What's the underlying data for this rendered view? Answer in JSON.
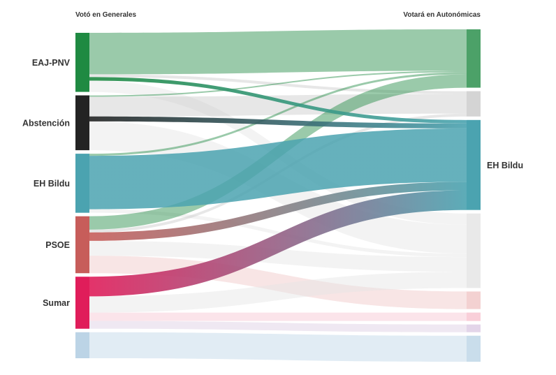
{
  "chart_data": {
    "type": "sankey",
    "left_header": "Votó en Generales",
    "right_header": "Votará en Autonómicas",
    "colors": {
      "EAJ-PNV": "#1f8a42",
      "Abstención": "#232323",
      "EH Bildu": "#4ba3b0",
      "PSOE": "#c75d5a",
      "Sumar": "#e01d5a",
      "Otros": "#bcd4e6",
      "PSOE_dest": "#f0c6c6",
      "Sumar_dest": "#f7c3d0",
      "Purple_dest": "#dccbe3",
      "Abst_dest": "#c9c9c9",
      "Grey_dest": "#e4e4e4"
    },
    "sources": [
      {
        "name": "EAJ-PNV",
        "label": "EAJ-PNV"
      },
      {
        "name": "Abstención",
        "label": "Abstención"
      },
      {
        "name": "EH Bildu",
        "label": "EH Bildu"
      },
      {
        "name": "PSOE",
        "label": "PSOE"
      },
      {
        "name": "Sumar",
        "label": "Sumar"
      },
      {
        "name": "Otros",
        "label": ""
      }
    ],
    "targets": [
      {
        "name": "EAJ-PNV",
        "label": "",
        "color_key": "EAJ-PNV"
      },
      {
        "name": "Abstención",
        "label": "",
        "color_key": "Abst_dest"
      },
      {
        "name": "EH Bildu",
        "label": "EH Bildu",
        "color_key": "EH Bildu"
      },
      {
        "name": "Otros2",
        "label": "",
        "color_key": "Grey_dest"
      },
      {
        "name": "PSOE",
        "label": "",
        "color_key": "PSOE_dest"
      },
      {
        "name": "Sumar",
        "label": "",
        "color_key": "Sumar_dest"
      },
      {
        "name": "Purple",
        "label": "",
        "color_key": "Purple_dest"
      },
      {
        "name": "Otros",
        "label": "",
        "color_key": "Otros"
      }
    ],
    "flows": [
      {
        "source": "EAJ-PNV",
        "target": "EAJ-PNV",
        "value": 59
      },
      {
        "source": "EAJ-PNV",
        "target": "EH Bildu",
        "value": 5
      },
      {
        "source": "EAJ-PNV",
        "target": "Otros2",
        "value": 16
      },
      {
        "source": "EAJ-PNV",
        "target": "Abstención",
        "value": 4
      },
      {
        "source": "Abstención",
        "target": "Abstención",
        "value": 28
      },
      {
        "source": "Abstención",
        "target": "EH Bildu",
        "value": 7
      },
      {
        "source": "Abstención",
        "target": "Otros2",
        "value": 41
      },
      {
        "source": "Abstención",
        "target": "EAJ-PNV",
        "value": 2
      },
      {
        "source": "EH Bildu",
        "target": "EAJ-PNV",
        "value": 3
      },
      {
        "source": "EH Bildu",
        "target": "EH Bildu",
        "value": 76
      },
      {
        "source": "EH Bildu",
        "target": "Otros2",
        "value": 5
      },
      {
        "source": "PSOE",
        "target": "EAJ-PNV",
        "value": 19
      },
      {
        "source": "PSOE",
        "target": "Abstención",
        "value": 4
      },
      {
        "source": "PSOE",
        "target": "EH Bildu",
        "value": 12
      },
      {
        "source": "PSOE",
        "target": "Otros2",
        "value": 21
      },
      {
        "source": "PSOE",
        "target": "PSOE",
        "value": 25
      },
      {
        "source": "Sumar",
        "target": "EH Bildu",
        "value": 28
      },
      {
        "source": "Sumar",
        "target": "Otros2",
        "value": 23
      },
      {
        "source": "Sumar",
        "target": "Sumar",
        "value": 12
      },
      {
        "source": "Sumar",
        "target": "Purple",
        "value": 11
      },
      {
        "source": "Otros",
        "target": "Otros",
        "value": 37
      }
    ],
    "highlight_target": "EH Bildu"
  }
}
